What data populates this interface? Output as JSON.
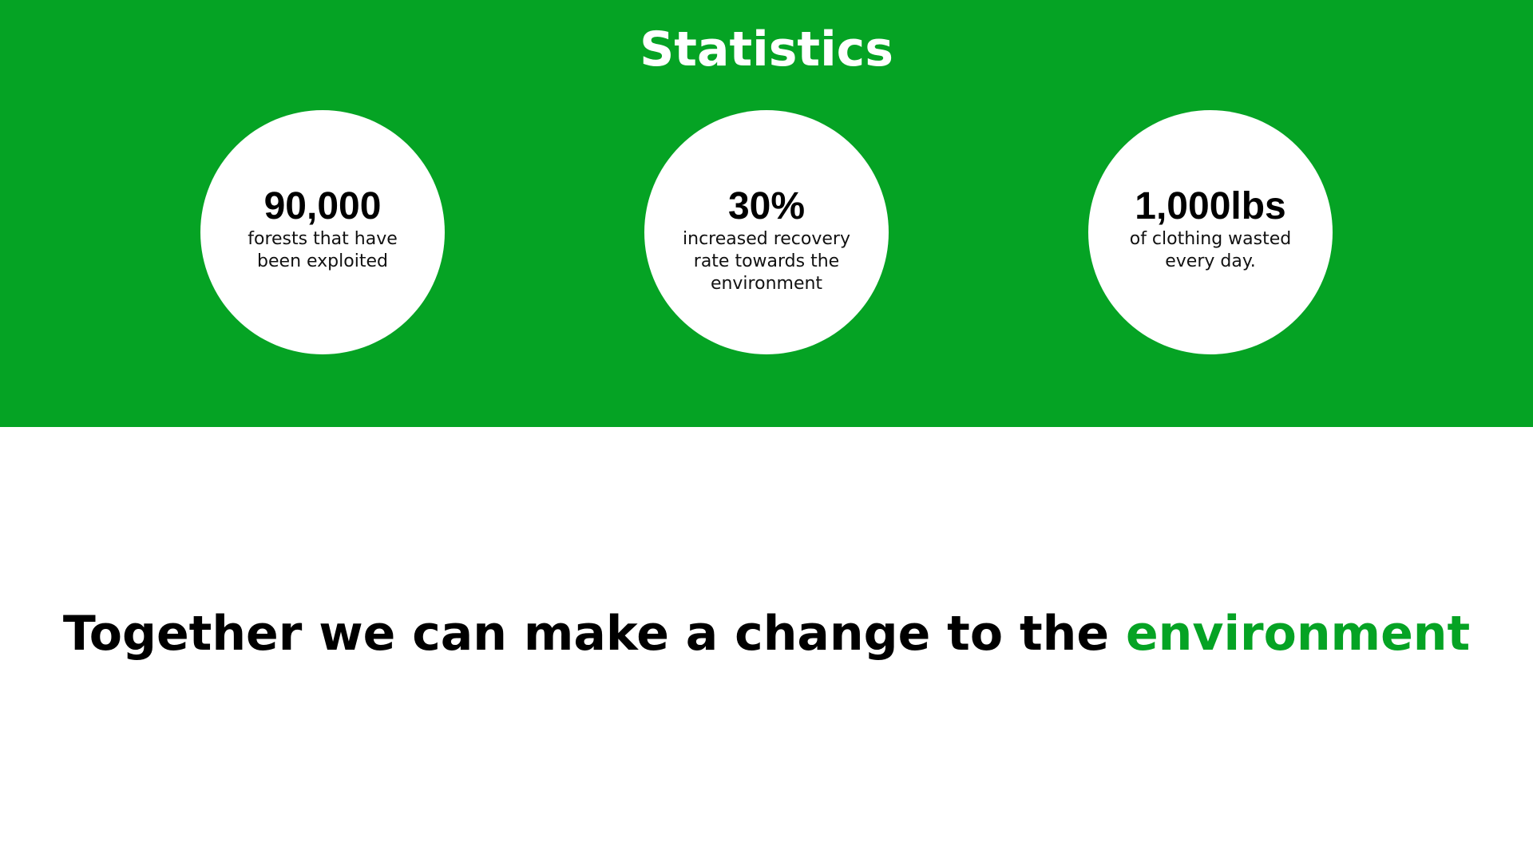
{
  "colors": {
    "accent": "#05a324",
    "circle": "#ffffff",
    "text": "#000000"
  },
  "statistics": {
    "title": "Statistics",
    "items": [
      {
        "value": "90,000",
        "description": "forests that have been exploited"
      },
      {
        "value": "30%",
        "description": "increased recovery rate towards the environment"
      },
      {
        "value": "1,000lbs",
        "description": "of clothing wasted every day."
      }
    ]
  },
  "cta": {
    "text": "Together we can make a change to the",
    "highlight": "environment"
  }
}
